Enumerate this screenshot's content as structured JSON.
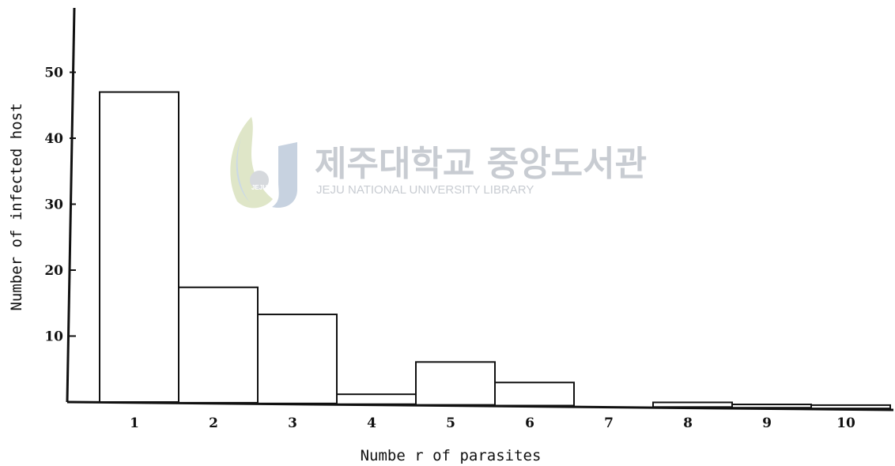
{
  "chart_data": {
    "type": "bar",
    "categories": [
      "1",
      "2",
      "3",
      "4",
      "5",
      "6",
      "7",
      "8",
      "9",
      "10"
    ],
    "values": [
      47,
      17.5,
      13.5,
      1.5,
      6.5,
      3.5,
      0,
      0.7,
      0.5,
      0.5
    ],
    "xlabel": "Numbe r  of  parasites",
    "ylabel": "Number  of  infected  host",
    "y_ticks": [
      10,
      20,
      30,
      40,
      50
    ],
    "ylim": [
      0,
      62
    ],
    "grid": false,
    "bar_color": "#ffffff",
    "edge_color": "#111111"
  },
  "watermark": {
    "title": "제주대학교 중앙도서관",
    "subtitle": "JEJU NATIONAL UNIVERSITY  LIBRARY",
    "seal_text": "JEJU",
    "color_primary": "#3b6fb6",
    "color_secondary": "#8cc63f"
  }
}
